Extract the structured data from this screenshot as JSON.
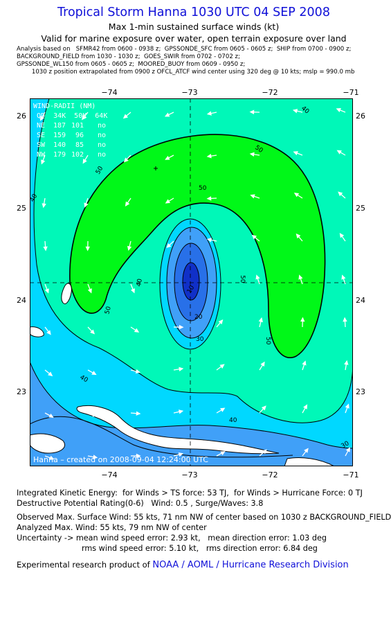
{
  "header": {
    "title": "Tropical Storm Hanna 1030 UTC 04 SEP 2008",
    "subtitle": "Max 1-min sustained surface winds (kt)",
    "valid": "Valid for marine exposure over water, open terrain exposure over land"
  },
  "analysis_lines": [
    "Analysis based on   SFMR42 from 0600 - 0938 z;  GPSSONDE_SFC from 0605 - 0605 z;  SHIP from 0700 - 0900 z;",
    "BACKGROUND_FIELD from 1030 - 1030 z;  GOES_SWIR from 0702 - 0702 z;",
    "GPSSONDE_WL150 from 0605 - 0605 z;  MOORED_BUOY from 0609 - 0950 z;",
    "        1030 z position extrapolated from 0900 z OFCL_ATCF wind center using 320 deg @ 10 kts; mslp = 990.0 mb"
  ],
  "map": {
    "lon_ticks": [
      "−74",
      "−73",
      "−72",
      "−71"
    ],
    "lat_ticks": [
      "26",
      "25",
      "24",
      "23"
    ],
    "contour_labels": [
      "40",
      "50",
      "50",
      "50",
      "50",
      "50",
      "40",
      "40",
      "40",
      "30",
      "30",
      "20",
      "10",
      "40",
      "50"
    ],
    "wind_radii": {
      "header": "WIND-RADII (NM)",
      "columns": "QD  34K  50K  64K",
      "rows": [
        {
          "quad": "NE",
          "r34": "187",
          "r50": "101",
          "r64": "no"
        },
        {
          "quad": "SE",
          "r34": "159",
          "r50": "96",
          "r64": "no"
        },
        {
          "quad": "SW",
          "r34": "140",
          "r50": "85",
          "r64": "no"
        },
        {
          "quad": "NW",
          "r34": "179",
          "r50": "102",
          "r64": "no"
        }
      ]
    },
    "credit": "Hanna – created on 2008-09-04 12:24:00 UTC",
    "colors": {
      "c0_10": "#1030c8",
      "c10_20": "#2870e8",
      "c20_30": "#40a0f8",
      "c30_40": "#00d8ff",
      "c40_50": "#00f8b8",
      "c50_60": "#00f818",
      "outer": "#00b4f0",
      "land": "#ffffff"
    }
  },
  "info": {
    "ike": "Integrated Kinetic Energy:  for Winds > TS force: 53 TJ,  for Winds > Hurricane Force: 0 TJ",
    "dp": "Destructive Potential Rating(0-6)   Wind: 0.5 , Surge/Waves: 3.8",
    "obs_max": "Observed Max. Surface Wind: 55 kts, 71 nm NW of center based on 1030 z BACKGROUND_FIELD",
    "an_max": "Analyzed Max. Wind: 55 kts, 79 nm NW of center",
    "unc1": "Uncertainty -> mean wind speed error: 2.93 kt,   mean direction error: 1.03 deg",
    "unc2": "rms wind speed error: 5.10 kt,   rms direction error: 6.84 deg",
    "product_prefix": "Experimental research product of ",
    "product_link": "NOAA / AOML / Hurricane Research Division"
  }
}
